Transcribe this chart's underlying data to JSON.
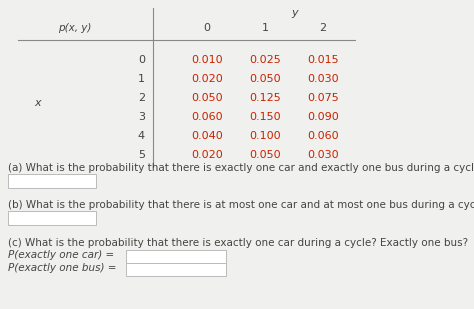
{
  "title_text": "y",
  "table_header": [
    "0",
    "1",
    "2"
  ],
  "x_label": "x",
  "pxy_label": "p(x, y)",
  "x_values": [
    "0",
    "1",
    "2",
    "3",
    "4",
    "5"
  ],
  "table_data": [
    [
      "0.010",
      "0.025",
      "0.015"
    ],
    [
      "0.020",
      "0.050",
      "0.030"
    ],
    [
      "0.050",
      "0.125",
      "0.075"
    ],
    [
      "0.060",
      "0.150",
      "0.090"
    ],
    [
      "0.040",
      "0.100",
      "0.060"
    ],
    [
      "0.020",
      "0.050",
      "0.030"
    ]
  ],
  "data_color": "#cc2200",
  "text_color": "#444444",
  "bg_color": "#f0f0ee",
  "question_a": "(a) What is the probability that there is exactly one car and exactly one bus during a cycle?",
  "question_b": "(b) What is the probability that there is at most one car and at most one bus during a cycle?",
  "question_c": "(c) What is the probability that there is exactly one car during a cycle? Exactly one bus?",
  "label_c1": "P(exactly one car) =",
  "label_c2": "P(exactly one bus) =",
  "font_size": 8.0,
  "q_font_size": 7.5
}
